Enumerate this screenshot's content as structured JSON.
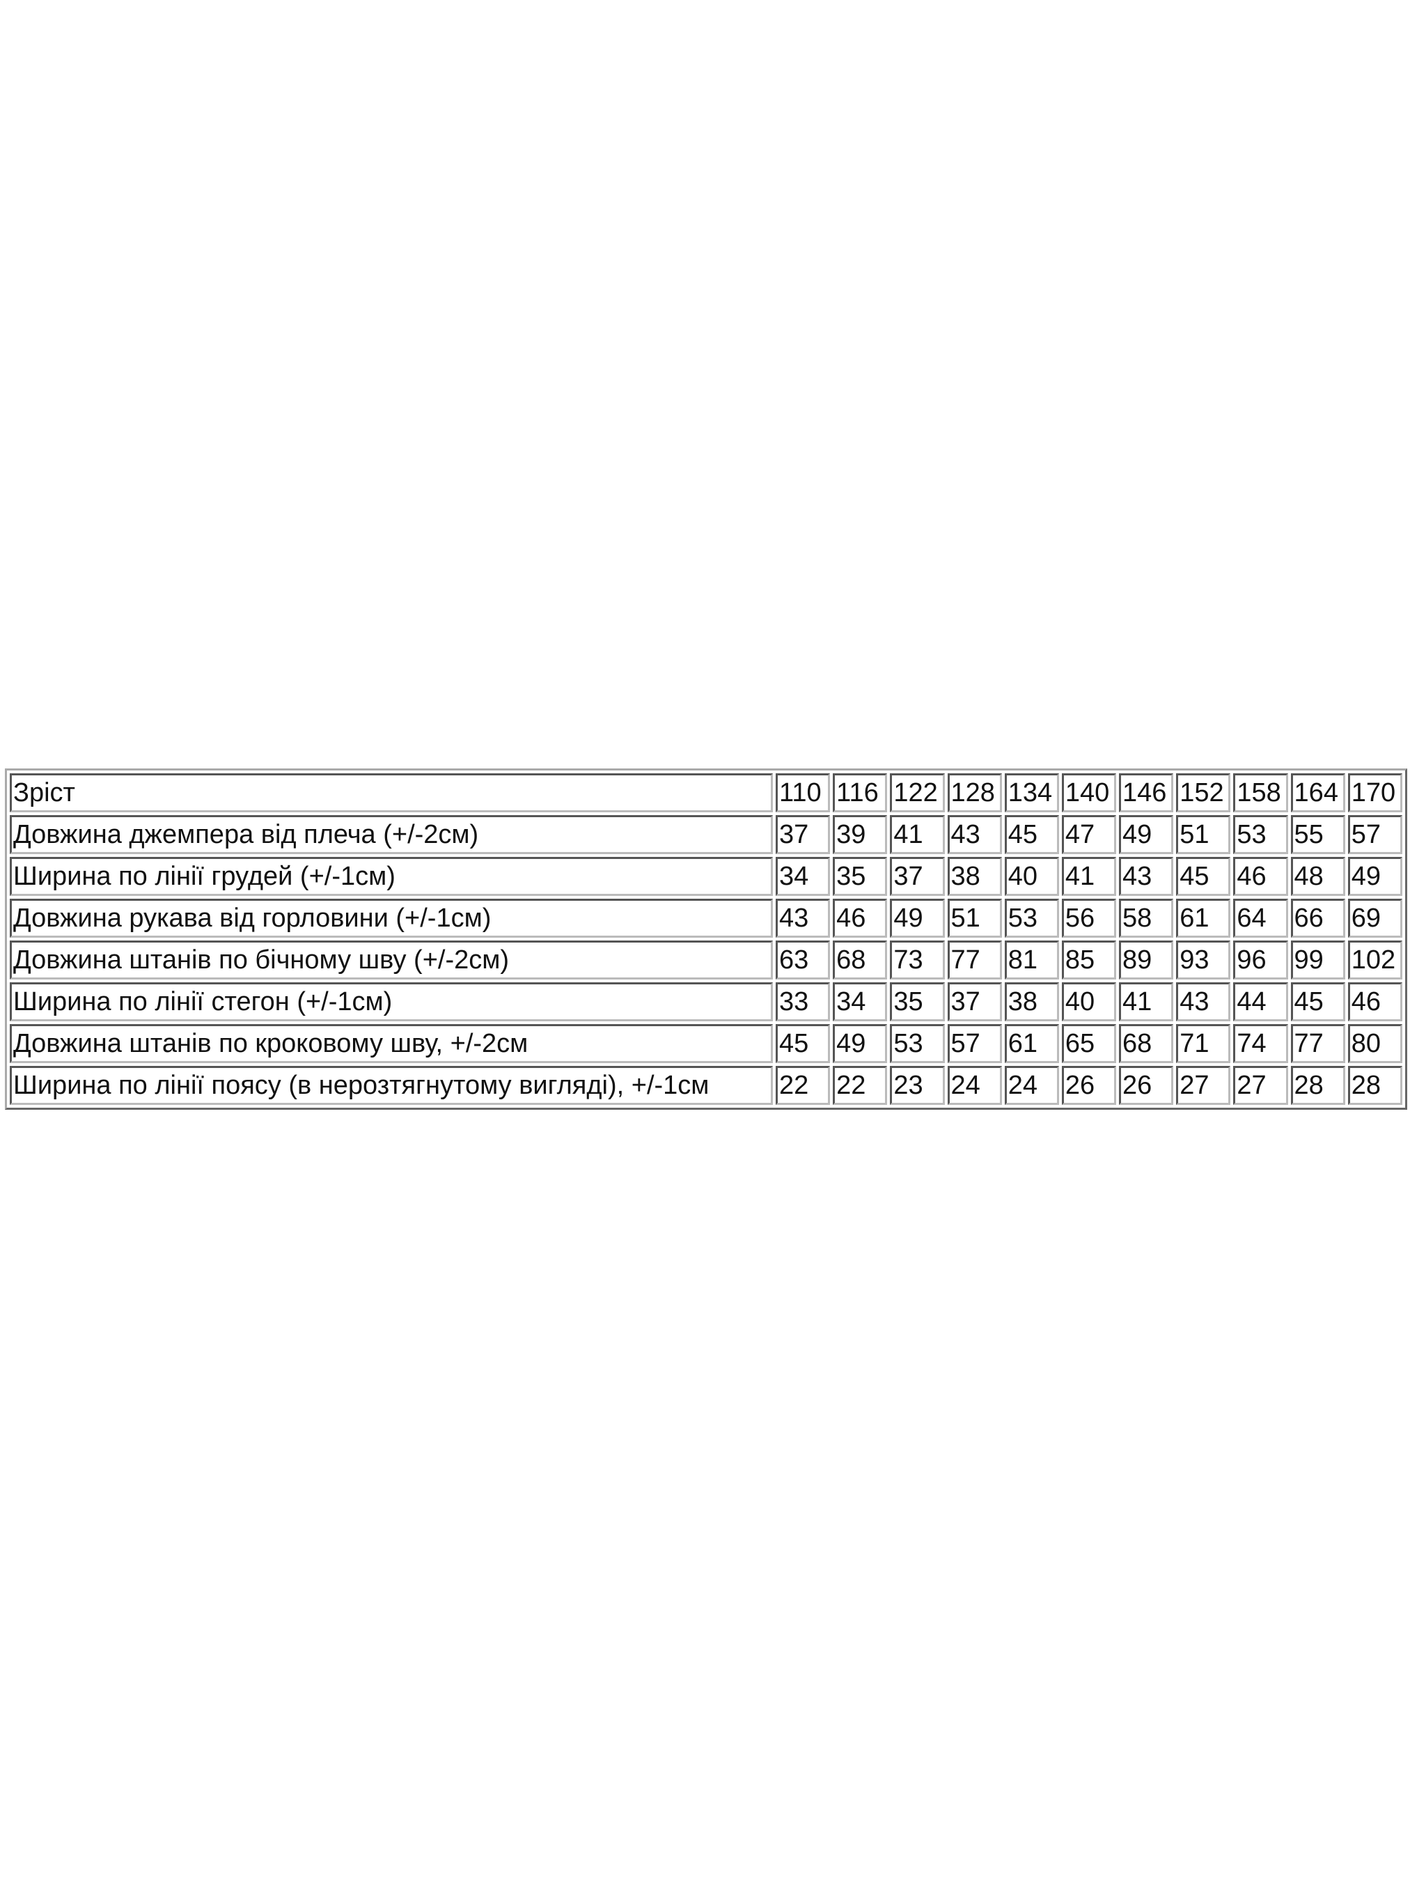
{
  "table": {
    "rows": [
      {
        "label": "Зріст",
        "values": [
          "110",
          "116",
          "122",
          "128",
          "134",
          "140",
          "146",
          "152",
          "158",
          "164",
          "170"
        ]
      },
      {
        "label": "Довжина джемпера від плеча (+/-2см)",
        "values": [
          "37",
          "39",
          "41",
          "43",
          "45",
          "47",
          "49",
          "51",
          "53",
          "55",
          "57"
        ]
      },
      {
        "label": "Ширина по лінії грудей (+/-1см)",
        "values": [
          "34",
          "35",
          "37",
          "38",
          "40",
          "41",
          "43",
          "45",
          "46",
          "48",
          "49"
        ]
      },
      {
        "label": "Довжина рукава від горловини (+/-1см)",
        "values": [
          "43",
          "46",
          "49",
          "51",
          "53",
          "56",
          "58",
          "61",
          "64",
          "66",
          "69"
        ]
      },
      {
        "label": "Довжина штанів по бічному шву (+/-2см)",
        "values": [
          "63",
          "68",
          "73",
          "77",
          "81",
          "85",
          "89",
          "93",
          "96",
          "99",
          "102"
        ]
      },
      {
        "label": "Ширина по лінії стегон (+/-1см)",
        "values": [
          "33",
          "34",
          "35",
          "37",
          "38",
          "40",
          "41",
          "43",
          "44",
          "45",
          "46"
        ]
      },
      {
        "label": "Довжина штанів по кроковому шву, +/-2см",
        "values": [
          "45",
          "49",
          "53",
          "57",
          "61",
          "65",
          "68",
          "71",
          "74",
          "77",
          "80"
        ]
      },
      {
        "label": "Ширина по лінії поясу (в нерозтягнутому вигляді), +/-1см",
        "values": [
          "22",
          "22",
          "23",
          "24",
          "24",
          "26",
          "26",
          "27",
          "27",
          "28",
          "28"
        ]
      }
    ]
  }
}
